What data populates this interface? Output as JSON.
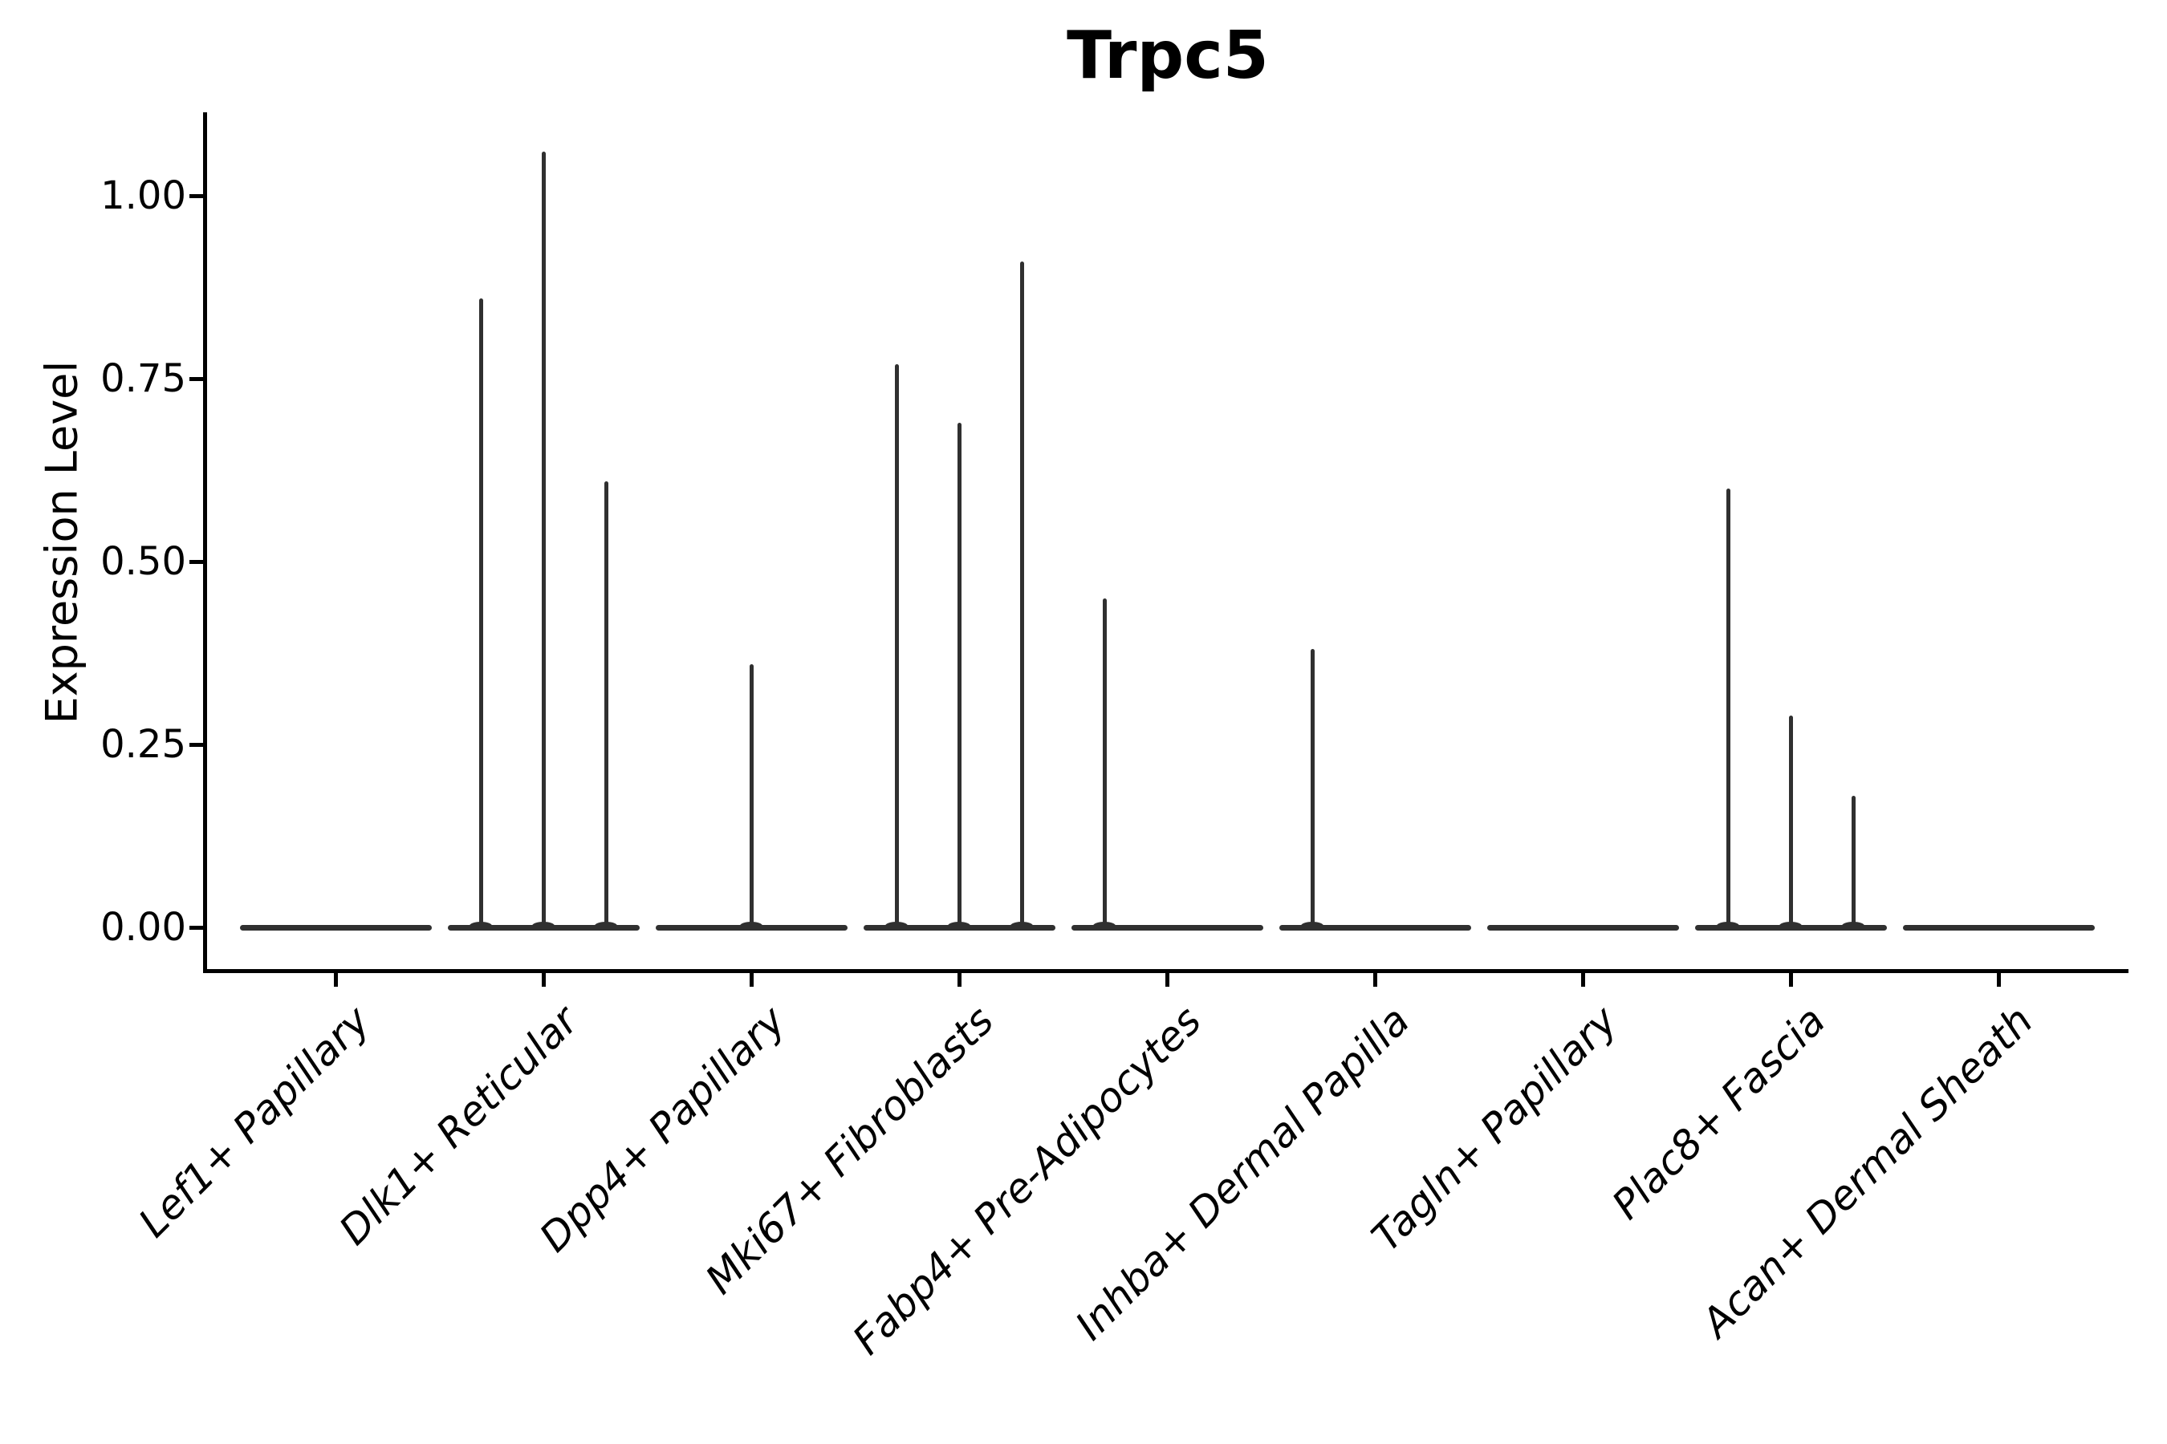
{
  "chart_data": {
    "type": "violin",
    "title": "Trpc5",
    "ylabel": "Expression Level",
    "xlabel": "",
    "grid": false,
    "legend": null,
    "ylim": [
      -0.06,
      1.11
    ],
    "ytick_labels": [
      "0.00",
      "0.25",
      "0.50",
      "0.75",
      "1.00"
    ],
    "ytick_values": [
      0.0,
      0.25,
      0.5,
      0.75,
      1.0
    ],
    "categories": [
      "Lef1+ Papillary",
      "Dlk1+ Reticular",
      "Dpp4+ Papillary",
      "Mki67+ Fibroblasts",
      "Fabp4+ Pre-Adipocytes",
      "Inhba+ Dermal Papilla",
      "Tagln+ Papillary",
      "Plac8+ Fascia",
      "Acan+ Dermal Sheath"
    ],
    "series": [
      {
        "category": "Lef1+ Papillary",
        "baseline": 0.0,
        "spikes": []
      },
      {
        "category": "Dlk1+ Reticular",
        "baseline": 0.0,
        "spikes": [
          {
            "pos": -1,
            "value": 0.86
          },
          {
            "pos": 0,
            "value": 1.06
          },
          {
            "pos": 1,
            "value": 0.61
          }
        ]
      },
      {
        "category": "Dpp4+ Papillary",
        "baseline": 0.0,
        "spikes": [
          {
            "pos": 0,
            "value": 0.36
          }
        ]
      },
      {
        "category": "Mki67+ Fibroblasts",
        "baseline": 0.0,
        "spikes": [
          {
            "pos": -1,
            "value": 0.77
          },
          {
            "pos": 0,
            "value": 0.69
          },
          {
            "pos": 1,
            "value": 0.91
          }
        ]
      },
      {
        "category": "Fabp4+ Pre-Adipocytes",
        "baseline": 0.0,
        "spikes": [
          {
            "pos": -1,
            "value": 0.45
          }
        ]
      },
      {
        "category": "Inhba+ Dermal Papilla",
        "baseline": 0.0,
        "spikes": [
          {
            "pos": -1,
            "value": 0.38
          }
        ]
      },
      {
        "category": "Tagln+ Papillary",
        "baseline": 0.0,
        "spikes": []
      },
      {
        "category": "Plac8+ Fascia",
        "baseline": 0.0,
        "spikes": [
          {
            "pos": -1,
            "value": 0.6
          },
          {
            "pos": 0,
            "value": 0.29
          },
          {
            "pos": 1,
            "value": 0.18
          }
        ]
      },
      {
        "category": "Acan+ Dermal Sheath",
        "baseline": 0.0,
        "spikes": []
      }
    ],
    "colors": {
      "violin": "#303030",
      "axis": "#000000",
      "text": "#000000",
      "background": "#ffffff"
    }
  }
}
